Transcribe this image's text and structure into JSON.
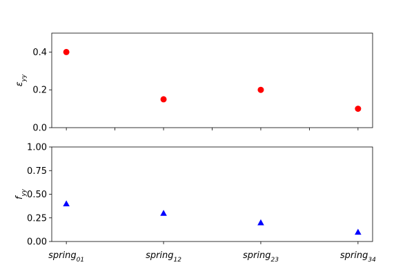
{
  "chart_data": [
    {
      "type": "scatter",
      "ylabel": {
        "base": "ε",
        "sub": "yy"
      },
      "ylim": [
        0,
        0.5
      ],
      "yticks": [
        0.0,
        0.2,
        0.4
      ],
      "ytick_labels": [
        "0.0",
        "0.2",
        "0.4"
      ],
      "x": [
        0,
        1,
        2,
        3
      ],
      "xlim": [
        -0.15,
        3.15
      ],
      "xticks": [
        0,
        0.5,
        1,
        1.5,
        2,
        2.5,
        3
      ],
      "show_xtick_labels": false,
      "marker": "circle",
      "color": "#ff0000",
      "values": [
        0.4,
        0.15,
        0.2,
        0.1
      ],
      "grid": false
    },
    {
      "type": "scatter",
      "ylabel": {
        "base": "f",
        "sub": "yy"
      },
      "ylim": [
        0,
        1.0
      ],
      "yticks": [
        0.0,
        0.25,
        0.5,
        0.75,
        1.0
      ],
      "ytick_labels": [
        "0.00",
        "0.25",
        "0.50",
        "0.75",
        "1.00"
      ],
      "x": [
        0,
        1,
        2,
        3
      ],
      "xlim": [
        -0.15,
        3.15
      ],
      "xticks": [
        0,
        1,
        2,
        3
      ],
      "categories": [
        {
          "base": "spring",
          "sub": "01"
        },
        {
          "base": "spring",
          "sub": "12"
        },
        {
          "base": "spring",
          "sub": "23"
        },
        {
          "base": "spring",
          "sub": "34"
        }
      ],
      "marker": "triangle",
      "color": "#0000ff",
      "values": [
        0.4,
        0.3,
        0.2,
        0.1
      ],
      "grid": false
    }
  ]
}
